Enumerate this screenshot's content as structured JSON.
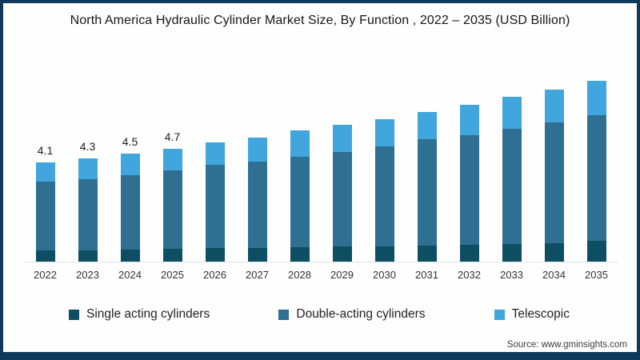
{
  "title": "North America Hydraulic Cylinder Market Size, By Function , 2022 – 2035 (USD Billion)",
  "source": "Source: www.gminsights.com",
  "colors": {
    "single_acting": "#0e4e62",
    "double_acting": "#2e6f92",
    "telescopic": "#41a5de",
    "frame_border": "#10395a",
    "baseline": "#e0e0e0"
  },
  "chart_data": {
    "type": "bar",
    "stacked": true,
    "title": "North America Hydraulic Cylinder Market Size, By Function , 2022 – 2035 (USD Billion)",
    "categories": [
      "2022",
      "2023",
      "2024",
      "2025",
      "2026",
      "2027",
      "2028",
      "2029",
      "2030",
      "2031",
      "2032",
      "2033",
      "2034",
      "2035"
    ],
    "series": [
      {
        "name": "Single acting cylinders",
        "color": "#0e4e62",
        "values": [
          0.45,
          0.48,
          0.5,
          0.53,
          0.55,
          0.58,
          0.6,
          0.62,
          0.64,
          0.67,
          0.69,
          0.72,
          0.78,
          0.87
        ]
      },
      {
        "name": "Double-acting cylinders",
        "color": "#2e6f92",
        "values": [
          2.85,
          2.95,
          3.1,
          3.27,
          3.45,
          3.6,
          3.75,
          3.93,
          4.17,
          4.42,
          4.56,
          4.81,
          5.02,
          5.24
        ]
      },
      {
        "name": "Telescopic",
        "color": "#41a5de",
        "values": [
          0.8,
          0.87,
          0.9,
          0.9,
          0.93,
          1.0,
          1.09,
          1.13,
          1.14,
          1.12,
          1.28,
          1.32,
          1.35,
          1.42
        ]
      }
    ],
    "totals": [
      4.1,
      4.3,
      4.5,
      4.7,
      4.93,
      5.18,
      5.44,
      5.68,
      5.95,
      6.21,
      6.53,
      6.85,
      7.15,
      7.53
    ],
    "bar_value_labels": [
      "4.1",
      "4.3",
      "4.5",
      "4.7",
      "",
      "",
      "",
      "",
      "",
      "",
      "",
      "",
      "",
      ""
    ],
    "xlabel": "",
    "ylabel": "",
    "ylim": [
      0,
      8
    ],
    "grid": false,
    "legend_position": "bottom"
  },
  "legend": {
    "items": [
      "Single acting cylinders",
      "Double-acting cylinders",
      "Telescopic"
    ]
  }
}
